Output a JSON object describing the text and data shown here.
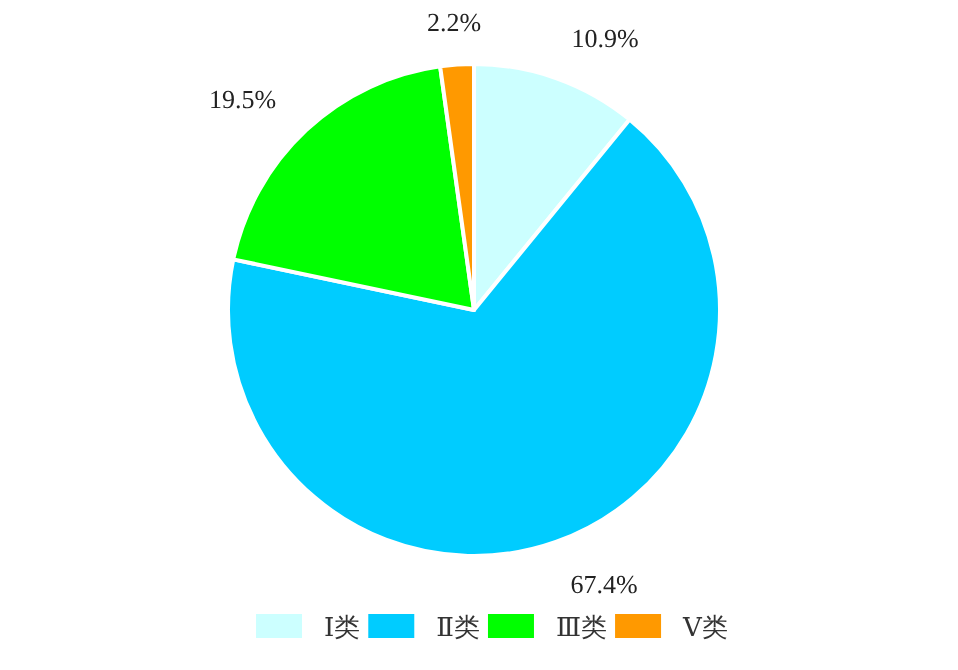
{
  "chart_data": {
    "type": "pie",
    "categories": [
      "Ⅰ类",
      "Ⅱ类",
      "Ⅲ类",
      "Ⅴ类"
    ],
    "values": [
      10.9,
      67.4,
      19.5,
      2.2
    ],
    "colors": [
      "#ccffff",
      "#00ccff",
      "#00ff00",
      "#ff9900"
    ],
    "value_labels": [
      "10.9%",
      "67.4%",
      "19.5%",
      "2.2%"
    ],
    "legend": "bottom"
  }
}
